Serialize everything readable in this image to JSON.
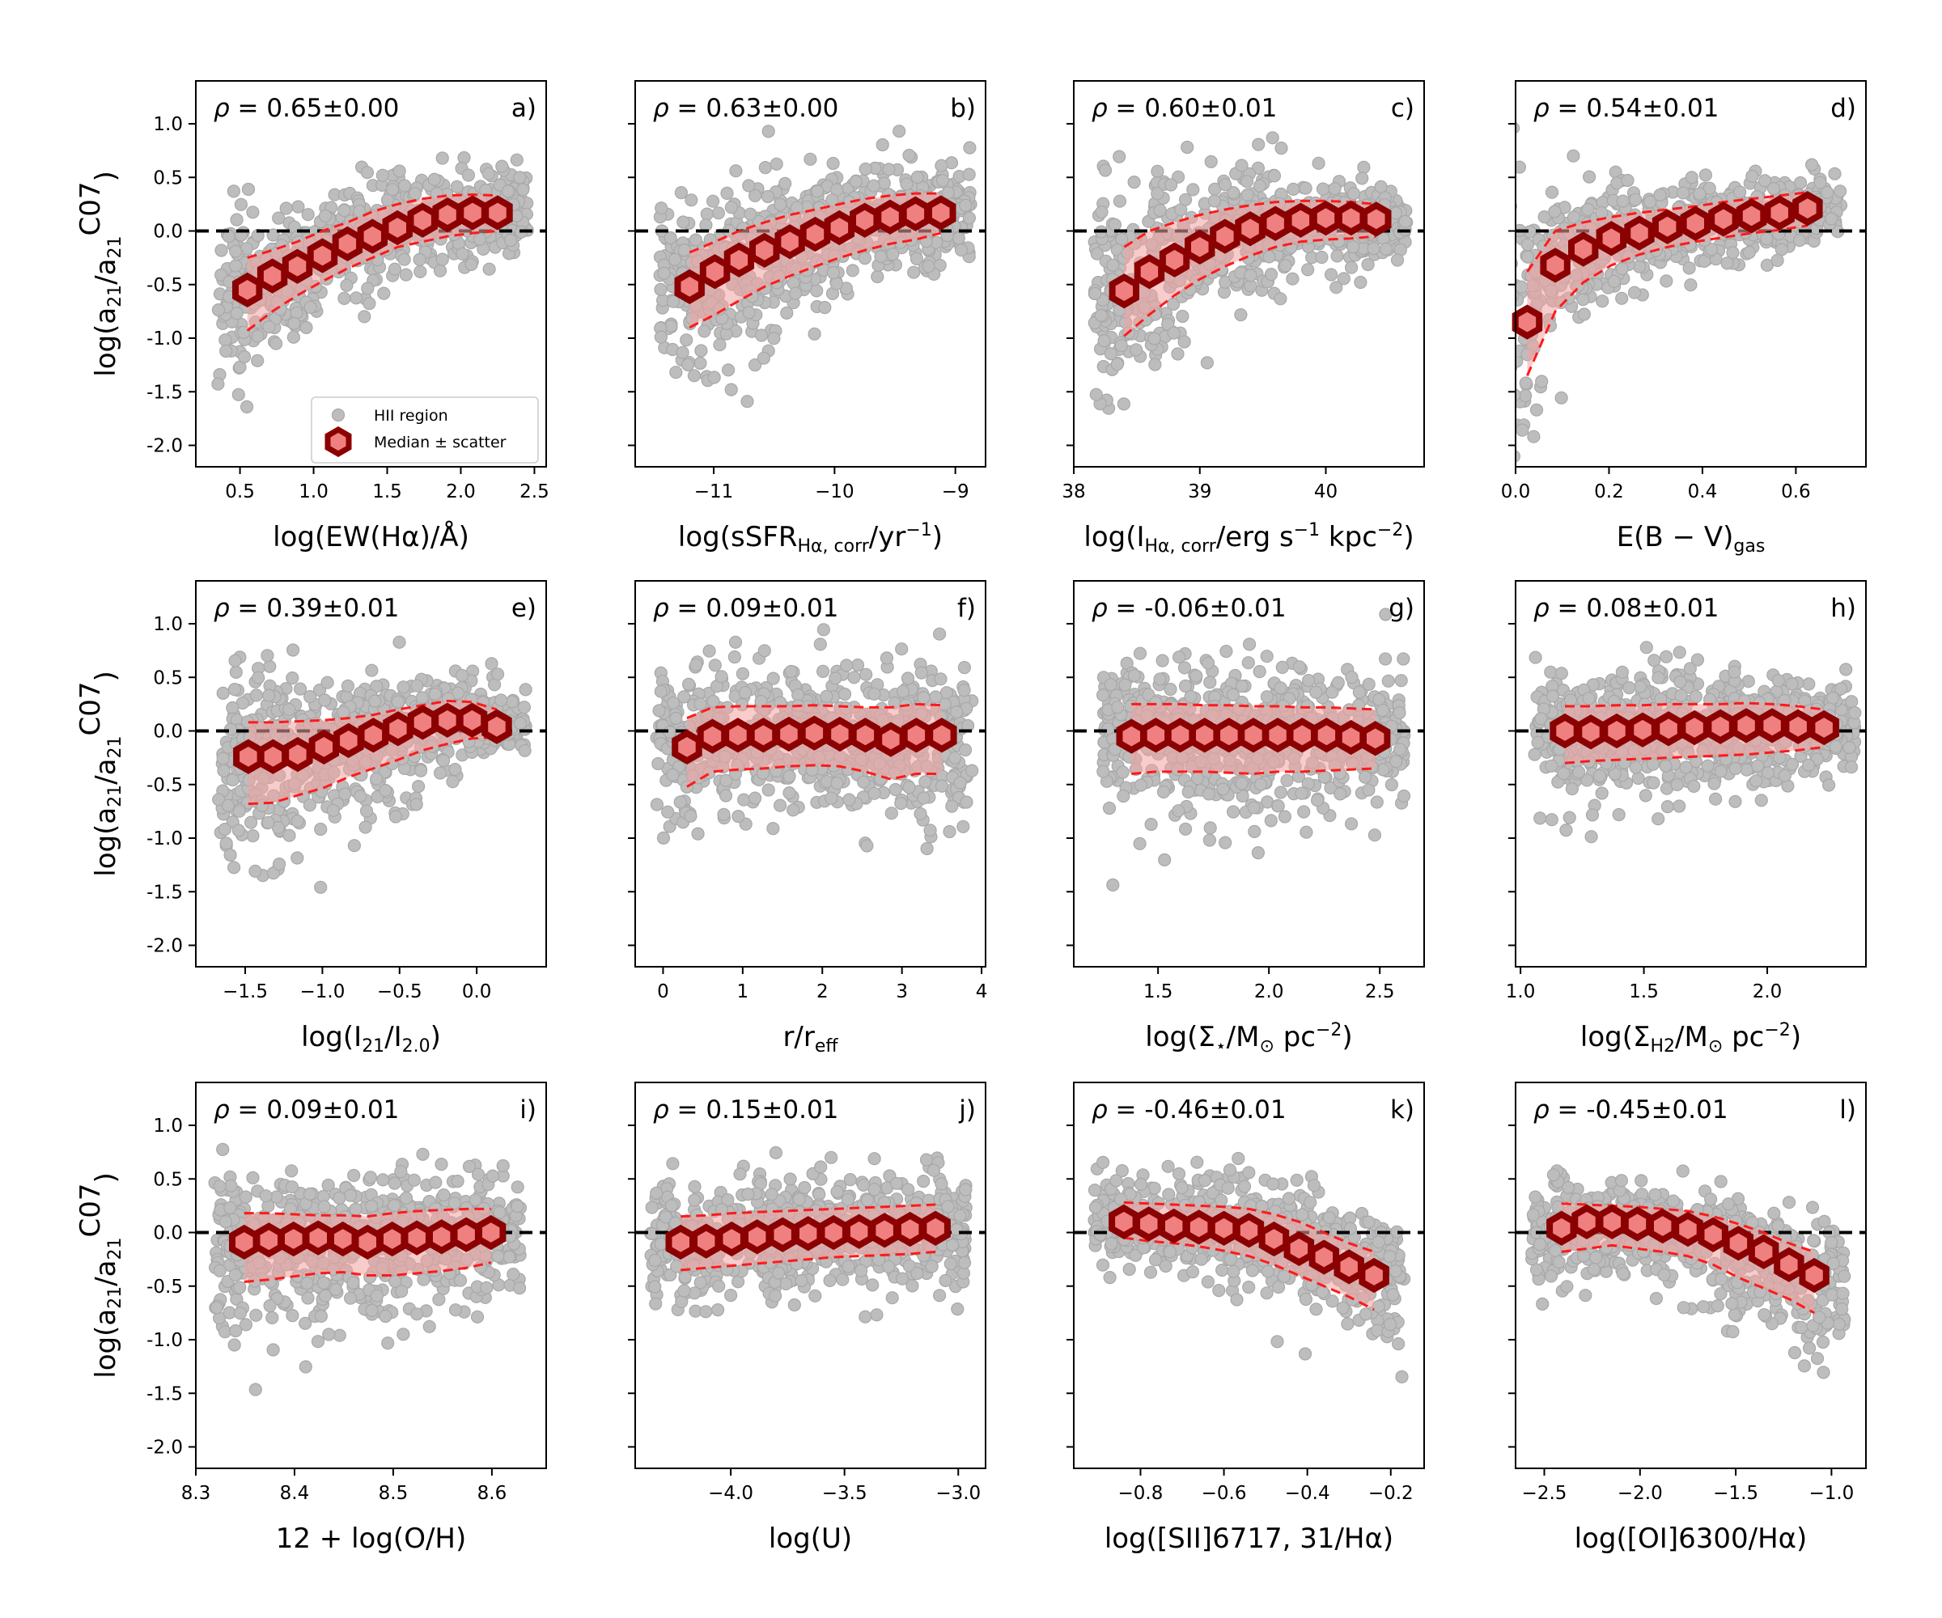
{
  "legend": {
    "point_label": "HII region",
    "median_label": "Median ± scatter"
  },
  "style": {
    "point_color": "#bdbdbd",
    "point_edge": "#a8a8a8",
    "median_fill": "#f08080",
    "median_edge": "#8b0000",
    "band_color": "#f4a3a3",
    "envelope_color": "#ff1a1a",
    "zero_line_color": "#000000"
  },
  "chart_data": [
    {
      "type": "scatter",
      "panel": "a)",
      "rho": "0.65±0.00",
      "xlabel": "log(EW(Hα)/Å)",
      "ylabel": "log(a21/a21C07)",
      "xlim": [
        0.2,
        2.58
      ],
      "ylim": [
        -2.2,
        1.4
      ],
      "xticks": [
        "0.5",
        "1.0",
        "1.5",
        "2.0",
        "2.5"
      ],
      "yticks": [
        "1.0",
        "0.5",
        "0.0",
        "-0.5",
        "-1.0",
        "-1.5",
        "-2.0"
      ],
      "median": {
        "x": [
          0.55,
          0.72,
          0.89,
          1.06,
          1.23,
          1.4,
          1.57,
          1.74,
          1.91,
          2.08,
          2.25
        ],
        "y": [
          -0.55,
          -0.42,
          -0.33,
          -0.23,
          -0.12,
          -0.05,
          0.03,
          0.1,
          0.15,
          0.17,
          0.17
        ],
        "upper": [
          -0.25,
          -0.18,
          -0.1,
          0.0,
          0.08,
          0.18,
          0.25,
          0.3,
          0.33,
          0.34,
          0.33
        ],
        "lower": [
          -0.93,
          -0.75,
          -0.6,
          -0.47,
          -0.35,
          -0.25,
          -0.15,
          -0.1,
          -0.05,
          -0.02,
          0.0
        ]
      }
    },
    {
      "type": "scatter",
      "panel": "b)",
      "rho": "0.63±0.00",
      "xlabel": "log(sSFRHα, corr/yr−1)",
      "ylabel": "",
      "xlim": [
        -11.65,
        -8.75
      ],
      "ylim": [
        -2.2,
        1.4
      ],
      "xticks": [
        "−11",
        "−10",
        "−9"
      ],
      "yticks": [],
      "median": {
        "x": [
          -11.2,
          -10.99,
          -10.79,
          -10.58,
          -10.37,
          -10.16,
          -9.96,
          -9.75,
          -9.54,
          -9.33,
          -9.12
        ],
        "y": [
          -0.52,
          -0.38,
          -0.27,
          -0.18,
          -0.1,
          -0.03,
          0.03,
          0.1,
          0.13,
          0.16,
          0.17
        ],
        "upper": [
          -0.2,
          -0.1,
          0.0,
          0.08,
          0.15,
          0.2,
          0.25,
          0.3,
          0.33,
          0.35,
          0.35
        ],
        "lower": [
          -0.9,
          -0.78,
          -0.65,
          -0.52,
          -0.42,
          -0.33,
          -0.25,
          -0.18,
          -0.12,
          -0.08,
          -0.02
        ]
      }
    },
    {
      "type": "scatter",
      "panel": "c)",
      "rho": "0.60±0.01",
      "xlabel": "log(IHα, corr/erg s−1 kpc−2)",
      "ylabel": "",
      "xlim": [
        38.0,
        40.78
      ],
      "ylim": [
        -2.2,
        1.4
      ],
      "xticks": [
        "38",
        "39",
        "40"
      ],
      "yticks": [],
      "median": {
        "x": [
          38.4,
          38.6,
          38.8,
          39.0,
          39.2,
          39.4,
          39.6,
          39.8,
          40.0,
          40.2,
          40.4
        ],
        "y": [
          -0.56,
          -0.38,
          -0.27,
          -0.15,
          -0.05,
          0.02,
          0.07,
          0.1,
          0.12,
          0.12,
          0.11
        ],
        "upper": [
          -0.15,
          0.0,
          0.08,
          0.15,
          0.2,
          0.24,
          0.27,
          0.28,
          0.28,
          0.27,
          0.25
        ],
        "lower": [
          -0.98,
          -0.78,
          -0.6,
          -0.45,
          -0.33,
          -0.23,
          -0.15,
          -0.1,
          -0.08,
          -0.07,
          -0.05
        ]
      }
    },
    {
      "type": "scatter",
      "panel": "d)",
      "rho": "0.54±0.01",
      "xlabel": "E(B − V)gas",
      "ylabel": "",
      "xlim": [
        0.0,
        0.75
      ],
      "ylim": [
        -2.2,
        1.4
      ],
      "xticks": [
        "0.0",
        "0.2",
        "0.4",
        "0.6"
      ],
      "yticks": [],
      "median": {
        "x": [
          0.025,
          0.085,
          0.145,
          0.205,
          0.265,
          0.325,
          0.385,
          0.445,
          0.505,
          0.565,
          0.625
        ],
        "y": [
          -0.85,
          -0.32,
          -0.17,
          -0.07,
          -0.02,
          0.04,
          0.07,
          0.11,
          0.14,
          0.17,
          0.21
        ],
        "upper": [
          -0.38,
          0.0,
          0.08,
          0.13,
          0.17,
          0.2,
          0.23,
          0.27,
          0.3,
          0.33,
          0.36
        ],
        "lower": [
          -1.35,
          -0.75,
          -0.48,
          -0.32,
          -0.22,
          -0.15,
          -0.1,
          -0.06,
          -0.02,
          0.01,
          0.05
        ]
      }
    },
    {
      "type": "scatter",
      "panel": "e)",
      "rho": "0.39±0.01",
      "xlabel": "log(I21/I2.0)",
      "ylabel": "log(a21/a21C07)",
      "xlim": [
        -1.82,
        0.45
      ],
      "ylim": [
        -2.2,
        1.4
      ],
      "xticks": [
        "−1.5",
        "−1.0",
        "−0.5",
        "0.0"
      ],
      "yticks": [
        "1.0",
        "0.5",
        "0.0",
        "-0.5",
        "-1.0",
        "-1.5",
        "-2.0"
      ],
      "median": {
        "x": [
          -1.48,
          -1.32,
          -1.16,
          -0.99,
          -0.83,
          -0.67,
          -0.51,
          -0.35,
          -0.19,
          -0.03,
          0.13
        ],
        "y": [
          -0.24,
          -0.24,
          -0.22,
          -0.15,
          -0.09,
          -0.04,
          0.02,
          0.08,
          0.1,
          0.1,
          0.04
        ],
        "upper": [
          0.08,
          0.08,
          0.09,
          0.1,
          0.12,
          0.15,
          0.2,
          0.24,
          0.28,
          0.27,
          0.2
        ],
        "lower": [
          -0.68,
          -0.67,
          -0.6,
          -0.53,
          -0.43,
          -0.35,
          -0.27,
          -0.18,
          -0.12,
          -0.07,
          -0.06
        ]
      }
    },
    {
      "type": "scatter",
      "panel": "f)",
      "rho": "0.09±0.01",
      "xlabel": "r/reff",
      "ylabel": "",
      "xlim": [
        -0.35,
        4.05
      ],
      "ylim": [
        -2.2,
        1.4
      ],
      "xticks": [
        "0",
        "1",
        "2",
        "3",
        "4"
      ],
      "yticks": [],
      "median": {
        "x": [
          0.3,
          0.62,
          0.94,
          1.26,
          1.58,
          1.9,
          2.22,
          2.54,
          2.86,
          3.18,
          3.5
        ],
        "y": [
          -0.15,
          -0.05,
          -0.04,
          -0.04,
          -0.03,
          -0.02,
          -0.03,
          -0.04,
          -0.08,
          -0.04,
          -0.04
        ],
        "upper": [
          0.12,
          0.22,
          0.23,
          0.23,
          0.23,
          0.24,
          0.23,
          0.22,
          0.22,
          0.25,
          0.24
        ],
        "lower": [
          -0.52,
          -0.38,
          -0.36,
          -0.35,
          -0.33,
          -0.32,
          -0.33,
          -0.38,
          -0.45,
          -0.4,
          -0.4
        ]
      }
    },
    {
      "type": "scatter",
      "panel": "g)",
      "rho": "-0.06±0.01",
      "xlabel": "log(Σ⋆/M⊙ pc−2)",
      "ylabel": "",
      "xlim": [
        1.12,
        2.7
      ],
      "ylim": [
        -2.2,
        1.4
      ],
      "xticks": [
        "1.5",
        "2.0",
        "2.5"
      ],
      "yticks": [],
      "median": {
        "x": [
          1.38,
          1.49,
          1.6,
          1.71,
          1.82,
          1.93,
          2.04,
          2.15,
          2.26,
          2.37,
          2.48
        ],
        "y": [
          -0.05,
          -0.04,
          -0.04,
          -0.04,
          -0.04,
          -0.04,
          -0.04,
          -0.04,
          -0.04,
          -0.06,
          -0.07
        ],
        "upper": [
          0.25,
          0.25,
          0.25,
          0.24,
          0.24,
          0.23,
          0.23,
          0.22,
          0.22,
          0.21,
          0.2
        ],
        "lower": [
          -0.4,
          -0.38,
          -0.38,
          -0.38,
          -0.39,
          -0.4,
          -0.38,
          -0.38,
          -0.37,
          -0.36,
          -0.35
        ]
      }
    },
    {
      "type": "scatter",
      "panel": "h)",
      "rho": "0.08±0.01",
      "xlabel": "log(ΣH2/M⊙ pc−2)",
      "ylabel": "",
      "xlim": [
        0.98,
        2.4
      ],
      "ylim": [
        -2.2,
        1.4
      ],
      "xticks": [
        "1.0",
        "1.5",
        "2.0"
      ],
      "yticks": [],
      "median": {
        "x": [
          1.18,
          1.285,
          1.39,
          1.495,
          1.6,
          1.705,
          1.81,
          1.915,
          2.02,
          2.125,
          2.23
        ],
        "y": [
          0.0,
          -0.01,
          0.0,
          0.01,
          0.02,
          0.03,
          0.04,
          0.05,
          0.05,
          0.04,
          0.03
        ],
        "upper": [
          0.23,
          0.23,
          0.24,
          0.24,
          0.25,
          0.25,
          0.25,
          0.26,
          0.25,
          0.23,
          0.2
        ],
        "lower": [
          -0.3,
          -0.28,
          -0.27,
          -0.26,
          -0.25,
          -0.24,
          -0.23,
          -0.22,
          -0.2,
          -0.18,
          -0.15
        ]
      }
    },
    {
      "type": "scatter",
      "panel": "i)",
      "rho": "0.09±0.01",
      "xlabel": "12 + log(O/H)",
      "ylabel": "log(a21/a21C07)",
      "xlim": [
        8.3,
        8.655
      ],
      "ylim": [
        -2.2,
        1.4
      ],
      "xticks": [
        "8.3",
        "8.4",
        "8.5",
        "8.6"
      ],
      "yticks": [
        "1.0",
        "0.5",
        "0.0",
        "-0.5",
        "-1.0",
        "-1.5",
        "-2.0"
      ],
      "median": {
        "x": [
          8.349,
          8.374,
          8.399,
          8.424,
          8.449,
          8.474,
          8.499,
          8.524,
          8.549,
          8.574,
          8.599
        ],
        "y": [
          -0.09,
          -0.07,
          -0.06,
          -0.05,
          -0.06,
          -0.09,
          -0.06,
          -0.05,
          -0.04,
          -0.02,
          0.0
        ],
        "upper": [
          0.18,
          0.18,
          0.17,
          0.16,
          0.16,
          0.15,
          0.18,
          0.2,
          0.21,
          0.22,
          0.22
        ],
        "lower": [
          -0.46,
          -0.44,
          -0.41,
          -0.38,
          -0.37,
          -0.4,
          -0.4,
          -0.38,
          -0.36,
          -0.33,
          -0.28
        ]
      }
    },
    {
      "type": "scatter",
      "panel": "j)",
      "rho": "0.15±0.01",
      "xlabel": "log(U)",
      "ylabel": "",
      "xlim": [
        -4.42,
        -2.88
      ],
      "ylim": [
        -2.2,
        1.4
      ],
      "xticks": [
        "−4.0",
        "−3.5",
        "−3.0"
      ],
      "yticks": [],
      "median": {
        "x": [
          -4.22,
          -4.108,
          -3.996,
          -3.884,
          -3.772,
          -3.66,
          -3.548,
          -3.436,
          -3.324,
          -3.212,
          -3.1
        ],
        "y": [
          -0.09,
          -0.08,
          -0.06,
          -0.04,
          -0.02,
          -0.01,
          0.0,
          0.01,
          0.02,
          0.03,
          0.04
        ],
        "upper": [
          0.15,
          0.16,
          0.18,
          0.19,
          0.2,
          0.21,
          0.22,
          0.23,
          0.24,
          0.25,
          0.26
        ],
        "lower": [
          -0.35,
          -0.33,
          -0.31,
          -0.29,
          -0.27,
          -0.25,
          -0.23,
          -0.22,
          -0.21,
          -0.2,
          -0.18
        ]
      }
    },
    {
      "type": "scatter",
      "panel": "k)",
      "rho": "-0.46±0.01",
      "xlabel": "log([SII]6717, 31/Hα)",
      "ylabel": "",
      "xlim": [
        -0.96,
        -0.12
      ],
      "ylim": [
        -2.2,
        1.4
      ],
      "xticks": [
        "−0.8",
        "−0.6",
        "−0.4",
        "−0.2"
      ],
      "yticks": [],
      "median": {
        "x": [
          -0.84,
          -0.78,
          -0.72,
          -0.66,
          -0.6,
          -0.54,
          -0.48,
          -0.42,
          -0.36,
          -0.3,
          -0.24
        ],
        "y": [
          0.1,
          0.08,
          0.06,
          0.05,
          0.04,
          0.02,
          -0.06,
          -0.15,
          -0.23,
          -0.32,
          -0.4
        ],
        "upper": [
          0.28,
          0.27,
          0.26,
          0.25,
          0.24,
          0.22,
          0.17,
          0.1,
          0.0,
          -0.1,
          -0.18
        ],
        "lower": [
          -0.05,
          -0.08,
          -0.1,
          -0.13,
          -0.17,
          -0.22,
          -0.3,
          -0.4,
          -0.5,
          -0.6,
          -0.72
        ]
      }
    },
    {
      "type": "scatter",
      "panel": "l)",
      "rho": "-0.45±0.01",
      "xlabel": "log([OI]6300/Hα)",
      "ylabel": "",
      "xlim": [
        -2.65,
        -0.82
      ],
      "ylim": [
        -2.2,
        1.4
      ],
      "xticks": [
        "−2.5",
        "−2.0",
        "−1.5",
        "−1.0"
      ],
      "yticks": [],
      "median": {
        "x": [
          -2.41,
          -2.278,
          -2.146,
          -2.014,
          -1.882,
          -1.75,
          -1.618,
          -1.486,
          -1.354,
          -1.222,
          -1.09
        ],
        "y": [
          0.04,
          0.1,
          0.1,
          0.08,
          0.06,
          0.03,
          -0.02,
          -0.1,
          -0.18,
          -0.3,
          -0.4
        ],
        "upper": [
          0.27,
          0.26,
          0.25,
          0.24,
          0.22,
          0.2,
          0.15,
          0.08,
          0.0,
          -0.1,
          -0.18
        ],
        "lower": [
          -0.18,
          -0.15,
          -0.12,
          -0.15,
          -0.18,
          -0.22,
          -0.3,
          -0.42,
          -0.52,
          -0.62,
          -0.75
        ]
      }
    }
  ]
}
